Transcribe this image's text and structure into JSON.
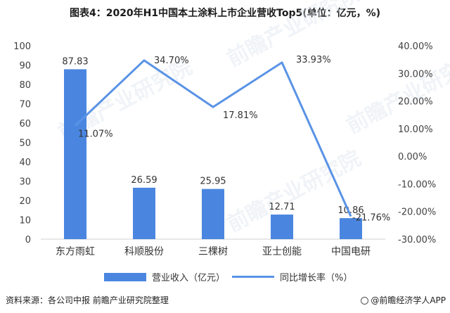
{
  "title": "图表4：2020年H1中国本土涂料上市企业营收Top5(单位：亿元，%)",
  "footer": {
    "source": "资料来源：各公司中报  前瞻产业研究院整理",
    "brand": "@前瞻经济学人APP"
  },
  "watermark": "前瞻产业研究院",
  "colors": {
    "bar": "#4a86e0",
    "line": "#5a93e6"
  },
  "chart_data": {
    "type": "bar",
    "categories": [
      "东方雨虹",
      "科顺股份",
      "三棵树",
      "亚士创能",
      "中国电研"
    ],
    "series": [
      {
        "name": "营业收入（亿元）",
        "type": "bar",
        "axis": "left",
        "values": [
          87.83,
          26.59,
          25.95,
          12.71,
          10.86
        ],
        "labels": [
          "87.83",
          "26.59",
          "25.95",
          "12.71",
          "10.86"
        ]
      },
      {
        "name": "同比增长率（%）",
        "type": "line",
        "axis": "right",
        "values": [
          11.07,
          34.7,
          17.81,
          33.93,
          -21.76
        ],
        "labels": [
          "11.07%",
          "34.70%",
          "17.81%",
          "33.93%",
          "-21.76%"
        ]
      }
    ],
    "left_axis": {
      "min": 0,
      "max": 100,
      "step": 10,
      "ticks": [
        "0",
        "10",
        "20",
        "30",
        "40",
        "50",
        "60",
        "70",
        "80",
        "90",
        "100"
      ]
    },
    "right_axis": {
      "min": -30,
      "max": 40,
      "step": 10,
      "ticks": [
        "-30.00%",
        "-20.00%",
        "-10.00%",
        "0.00%",
        "10.00%",
        "20.00%",
        "30.00%",
        "40.00%"
      ]
    },
    "grid": false,
    "legend": "bottom"
  }
}
